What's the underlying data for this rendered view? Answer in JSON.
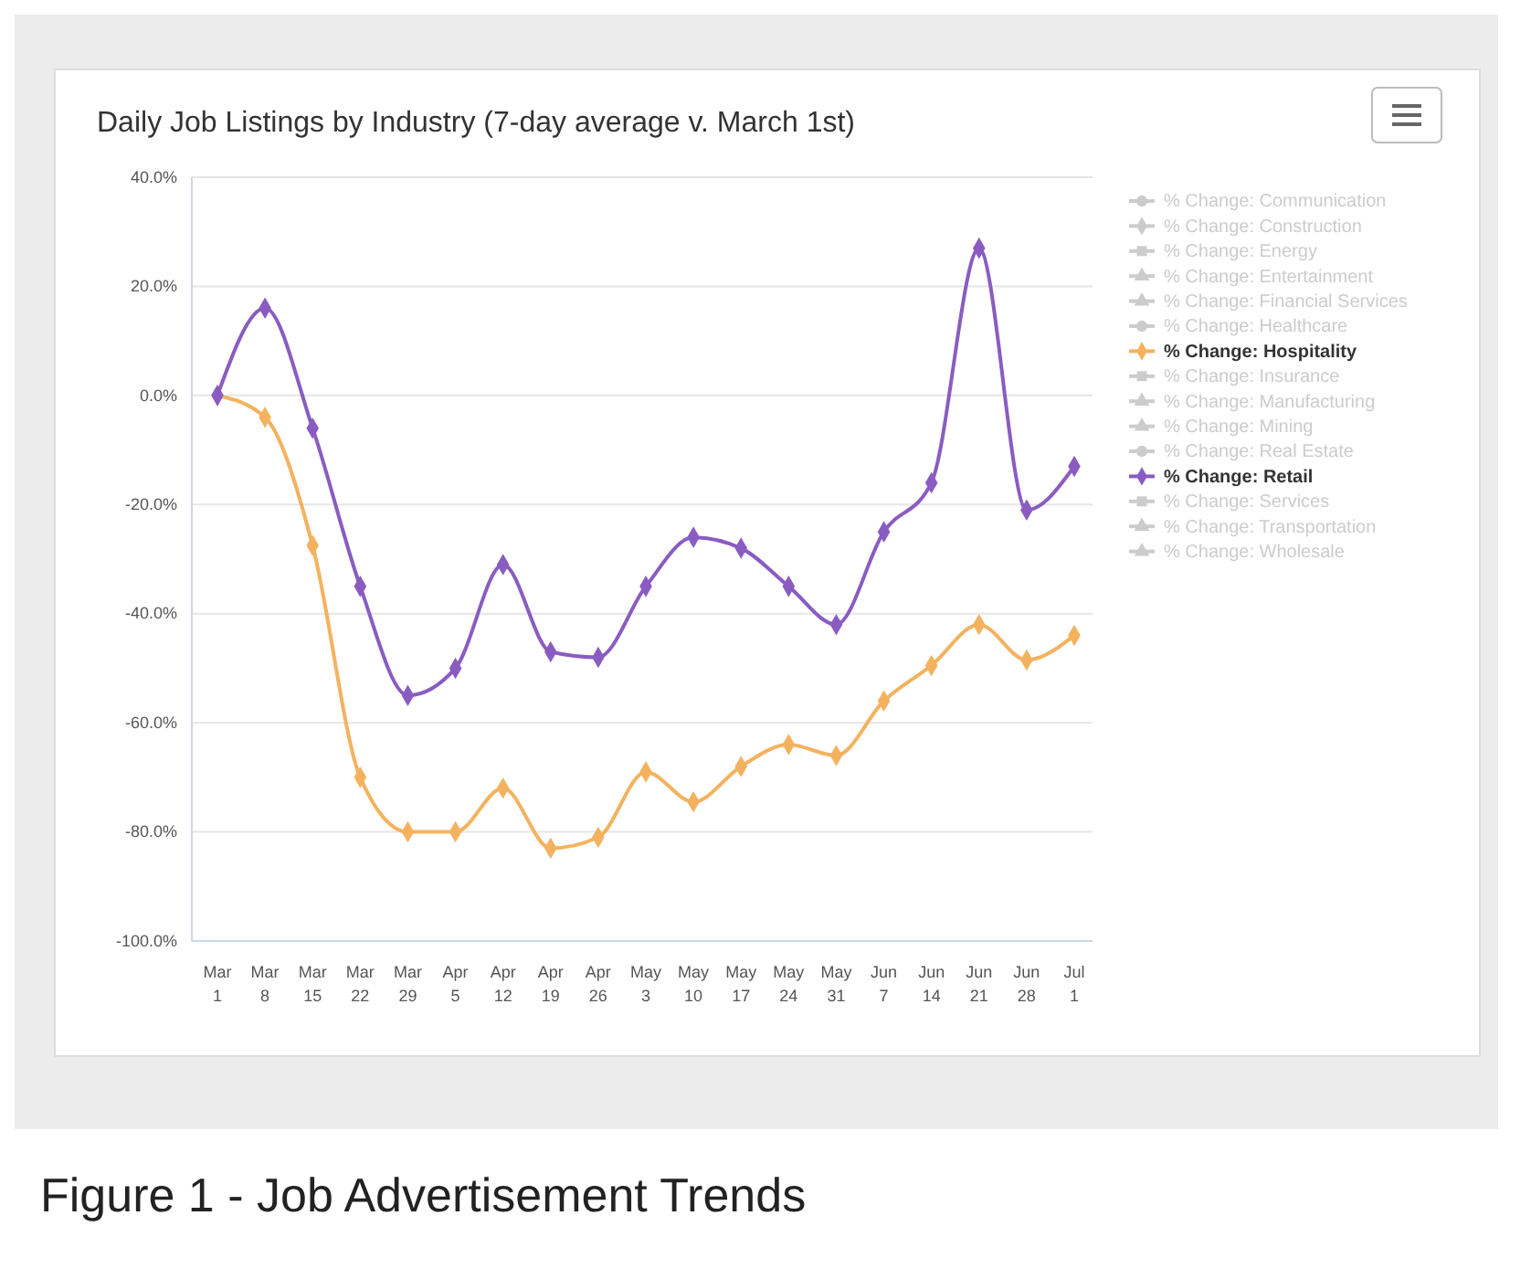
{
  "chart_data": {
    "type": "line",
    "title": "Daily Job Listings by Industry (7-day average v. March 1st)",
    "categories": [
      "Mar 1",
      "Mar 8",
      "Mar 15",
      "Mar 22",
      "Mar 29",
      "Apr 5",
      "Apr 12",
      "Apr 19",
      "Apr 26",
      "May 3",
      "May 10",
      "May 17",
      "May 24",
      "May 31",
      "Jun 7",
      "Jun 14",
      "Jun 21",
      "Jun 28",
      "Jul 1"
    ],
    "series": [
      {
        "name": "% Change: Communication",
        "color": "#cccccc",
        "marker": "circle",
        "values": [
          null,
          null,
          null,
          null,
          null,
          null,
          null,
          null,
          null,
          null,
          null,
          null,
          null,
          null,
          null,
          null,
          null,
          null,
          null
        ]
      },
      {
        "name": "% Change: Construction",
        "color": "#cccccc",
        "marker": "diamond",
        "values": [
          null,
          null,
          null,
          null,
          null,
          null,
          null,
          null,
          null,
          null,
          null,
          null,
          null,
          null,
          null,
          null,
          null,
          null,
          null
        ]
      },
      {
        "name": "% Change: Energy",
        "color": "#cccccc",
        "marker": "square",
        "values": [
          null,
          null,
          null,
          null,
          null,
          null,
          null,
          null,
          null,
          null,
          null,
          null,
          null,
          null,
          null,
          null,
          null,
          null,
          null
        ]
      },
      {
        "name": "% Change: Entertainment",
        "color": "#cccccc",
        "marker": "triangle",
        "values": [
          null,
          null,
          null,
          null,
          null,
          null,
          null,
          null,
          null,
          null,
          null,
          null,
          null,
          null,
          null,
          null,
          null,
          null,
          null
        ]
      },
      {
        "name": "% Change: Financial Services",
        "color": "#cccccc",
        "marker": "triangle",
        "values": [
          null,
          null,
          null,
          null,
          null,
          null,
          null,
          null,
          null,
          null,
          null,
          null,
          null,
          null,
          null,
          null,
          null,
          null,
          null
        ]
      },
      {
        "name": "% Change: Healthcare",
        "color": "#cccccc",
        "marker": "circle",
        "values": [
          null,
          null,
          null,
          null,
          null,
          null,
          null,
          null,
          null,
          null,
          null,
          null,
          null,
          null,
          null,
          null,
          null,
          null,
          null
        ]
      },
      {
        "name": "% Change: Hospitality",
        "color": "#f4b25f",
        "marker": "diamond",
        "values": [
          0,
          -4,
          -27.5,
          -70,
          -80,
          -80,
          -72,
          -83,
          -81,
          -69,
          -74.5,
          -68,
          -64,
          -66,
          -56,
          -49.5,
          -42,
          -48.5,
          -44
        ]
      },
      {
        "name": "% Change: Insurance",
        "color": "#cccccc",
        "marker": "square",
        "values": [
          null,
          null,
          null,
          null,
          null,
          null,
          null,
          null,
          null,
          null,
          null,
          null,
          null,
          null,
          null,
          null,
          null,
          null,
          null
        ]
      },
      {
        "name": "% Change: Manufacturing",
        "color": "#cccccc",
        "marker": "triangle",
        "values": [
          null,
          null,
          null,
          null,
          null,
          null,
          null,
          null,
          null,
          null,
          null,
          null,
          null,
          null,
          null,
          null,
          null,
          null,
          null
        ]
      },
      {
        "name": "% Change: Mining",
        "color": "#cccccc",
        "marker": "triangle",
        "values": [
          null,
          null,
          null,
          null,
          null,
          null,
          null,
          null,
          null,
          null,
          null,
          null,
          null,
          null,
          null,
          null,
          null,
          null,
          null
        ]
      },
      {
        "name": "% Change: Real Estate",
        "color": "#cccccc",
        "marker": "circle",
        "values": [
          null,
          null,
          null,
          null,
          null,
          null,
          null,
          null,
          null,
          null,
          null,
          null,
          null,
          null,
          null,
          null,
          null,
          null,
          null
        ]
      },
      {
        "name": "% Change: Retail",
        "color": "#8a5cc2",
        "marker": "diamond",
        "values": [
          0,
          16,
          -6,
          -35,
          -55,
          -50,
          -31,
          -47,
          -48,
          -35,
          -26,
          -28,
          -35,
          -42,
          -25,
          -16,
          27,
          -21,
          -13
        ]
      },
      {
        "name": "% Change: Services",
        "color": "#cccccc",
        "marker": "square",
        "values": [
          null,
          null,
          null,
          null,
          null,
          null,
          null,
          null,
          null,
          null,
          null,
          null,
          null,
          null,
          null,
          null,
          null,
          null,
          null
        ]
      },
      {
        "name": "% Change: Transportation",
        "color": "#cccccc",
        "marker": "triangle",
        "values": [
          null,
          null,
          null,
          null,
          null,
          null,
          null,
          null,
          null,
          null,
          null,
          null,
          null,
          null,
          null,
          null,
          null,
          null,
          null
        ]
      },
      {
        "name": "% Change: Wholesale",
        "color": "#cccccc",
        "marker": "triangle",
        "values": [
          null,
          null,
          null,
          null,
          null,
          null,
          null,
          null,
          null,
          null,
          null,
          null,
          null,
          null,
          null,
          null,
          null,
          null,
          null
        ]
      }
    ],
    "ylim": [
      -100,
      40
    ],
    "yticks": [
      {
        "value": -100,
        "label": "-100.0%"
      },
      {
        "value": -80,
        "label": "-80.0%"
      },
      {
        "value": -60,
        "label": "-60.0%"
      },
      {
        "value": -40,
        "label": "-40.0%"
      },
      {
        "value": -20,
        "label": "-20.0%"
      },
      {
        "value": 0,
        "label": "0.0%"
      },
      {
        "value": 20,
        "label": "20.0%"
      },
      {
        "value": 40,
        "label": "40.0%"
      }
    ],
    "grid": "y",
    "legend": "right",
    "line_style": "solid",
    "annotations": [
      "Figure 1 - Job Advertisement Trends"
    ]
  }
}
